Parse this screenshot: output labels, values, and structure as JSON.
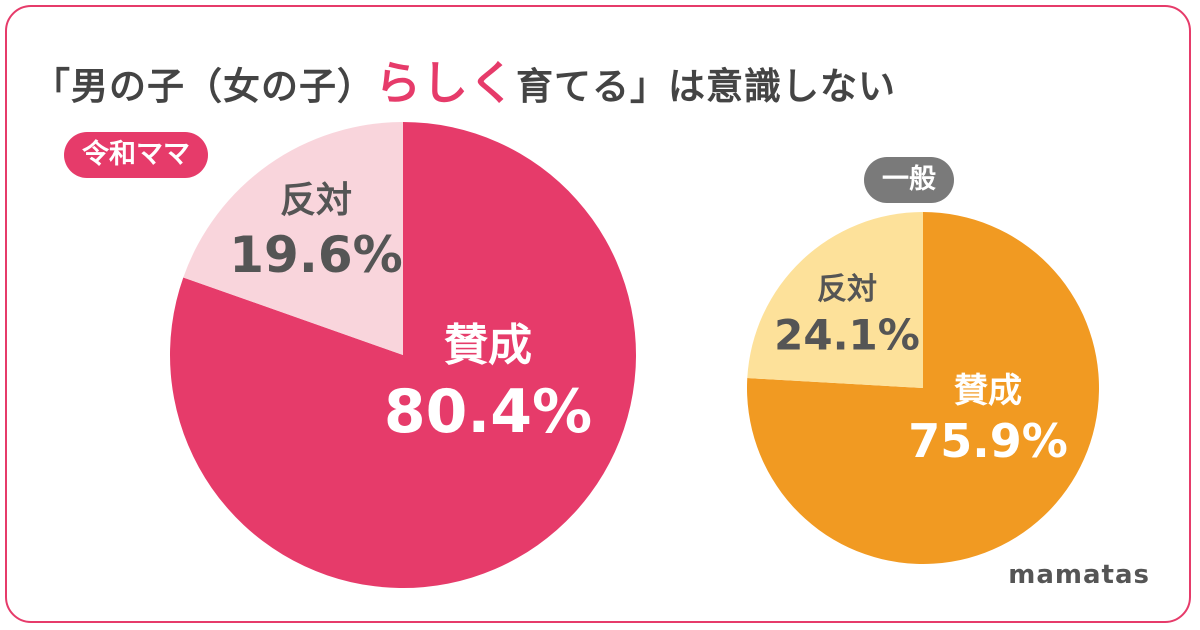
{
  "title": {
    "prefix": "「男の子（女の子）",
    "emphasis": "らしく",
    "suffix": "育てる」は意識しない"
  },
  "brand": "mamatas",
  "colors": {
    "accent": "#e63b6a",
    "reiwa_agree": "#e63b6a",
    "reiwa_disagree": "#f9d5dc",
    "general_agree": "#f19a22",
    "general_disagree": "#fde19a",
    "general_badge": "#7a7a7a",
    "dark_label": "#555555",
    "light_label": "#ffffff"
  },
  "chart_data": [
    {
      "type": "pie",
      "group": "令和ママ",
      "slices": [
        {
          "label": "賛成",
          "value": 80.4,
          "display": "80.4%"
        },
        {
          "label": "反対",
          "value": 19.6,
          "display": "19.6%"
        }
      ]
    },
    {
      "type": "pie",
      "group": "一般",
      "slices": [
        {
          "label": "賛成",
          "value": 75.9,
          "display": "75.9%"
        },
        {
          "label": "反対",
          "value": 24.1,
          "display": "24.1%"
        }
      ]
    }
  ]
}
